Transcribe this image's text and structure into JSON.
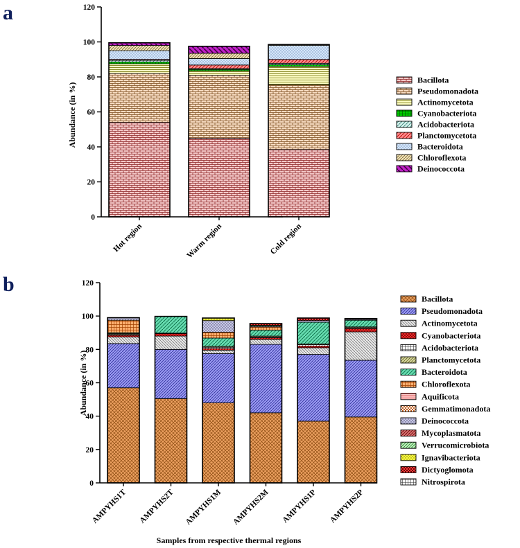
{
  "colors": {
    "panel_letter": "#0f1f5c"
  },
  "chart_data": [
    {
      "panel": "a",
      "type": "bar",
      "stacked": true,
      "ylabel": "Abundance (in %)",
      "xlabel": "",
      "ylim": [
        0,
        120
      ],
      "yticks": [
        "0",
        "20",
        "40",
        "60",
        "80",
        "100",
        "120"
      ],
      "categories": [
        "Hot region",
        "Warm region",
        "Cold region"
      ],
      "series": [
        {
          "name": "Bacillota",
          "values": [
            54,
            45,
            38.5
          ],
          "color": "#f4c9c9",
          "pattern": "brick-red"
        },
        {
          "name": "Pseudomonadota",
          "values": [
            28,
            36,
            37
          ],
          "color": "#f7dcc2",
          "pattern": "brick-orange"
        },
        {
          "name": "Actinomycetota",
          "values": [
            5.5,
            2.5,
            10.5
          ],
          "color": "#ffffc6",
          "pattern": "hlines-yellow"
        },
        {
          "name": "Cyanobacteriota",
          "values": [
            1,
            0.8,
            1
          ],
          "color": "#00c000",
          "pattern": "green-grid"
        },
        {
          "name": "Acidobacteriota",
          "values": [
            1,
            0.5,
            0.8
          ],
          "color": "#d5f1ec",
          "pattern": "diag-teal"
        },
        {
          "name": "Planctomycetota",
          "values": [
            0.5,
            2,
            2.2
          ],
          "color": "#ff6b6b",
          "pattern": "diag-red"
        },
        {
          "name": "Bacteroidota",
          "values": [
            5,
            3.7,
            8
          ],
          "color": "#d4e6fa",
          "pattern": "dots-blue"
        },
        {
          "name": "Chloroflexota",
          "values": [
            3,
            3,
            0.5
          ],
          "color": "#f0e2b8",
          "pattern": "diag-tan"
        },
        {
          "name": "Deinococcota",
          "values": [
            1.5,
            4,
            0
          ],
          "color": "#c020c8",
          "pattern": "diag-magenta"
        }
      ]
    },
    {
      "panel": "b",
      "type": "bar",
      "stacked": true,
      "ylabel": "Abundance (in %)",
      "xlabel": "Samples from respective thermal regions",
      "ylim": [
        0,
        120
      ],
      "yticks": [
        "0",
        "20",
        "40",
        "60",
        "80",
        "100",
        "120"
      ],
      "categories": [
        "AMPYHS1T",
        "AMPYHS2T",
        "AMPYHS1M",
        "AMPYHS2M",
        "AMPYHS1P",
        "AMPYHS2P"
      ],
      "series": [
        {
          "name": "Bacillota",
          "values": [
            57,
            50.5,
            48,
            42,
            37,
            39.5
          ],
          "color": "#e89850",
          "pattern": "cross-orange"
        },
        {
          "name": "Pseudomonadota",
          "values": [
            26.5,
            29.5,
            29.5,
            41,
            40,
            34
          ],
          "color": "#8c8cf0",
          "pattern": "diag-blue"
        },
        {
          "name": "Actinomycetota",
          "values": [
            4,
            8,
            2,
            3,
            4,
            17
          ],
          "color": "#e6e6e6",
          "pattern": "diag-grey"
        },
        {
          "name": "Cyanobacteriota",
          "values": [
            1,
            1.5,
            1,
            1,
            1,
            2
          ],
          "color": "#ff2a2a",
          "pattern": "cross-red"
        },
        {
          "name": "Acidobacteriota",
          "values": [
            0.5,
            0,
            0.8,
            0.5,
            0.8,
            0.5
          ],
          "color": "#ffffff",
          "pattern": "grid"
        },
        {
          "name": "Planctomycetota",
          "values": [
            0.5,
            0.3,
            0.5,
            0.5,
            0.5,
            0.5
          ],
          "color": "#d8d8a0",
          "pattern": "diag-olive"
        },
        {
          "name": "Bacteroidota",
          "values": [
            0.5,
            10,
            5,
            3.5,
            13,
            4
          ],
          "color": "#5fd8a8",
          "pattern": "diag-green"
        },
        {
          "name": "Chloroflexota",
          "values": [
            7.5,
            0,
            3.5,
            2,
            0,
            0
          ],
          "color": "#ffb070",
          "pattern": "grid-orange"
        },
        {
          "name": "Aquificota",
          "values": [
            0,
            0,
            0,
            0,
            0,
            0
          ],
          "color": "#ff7070",
          "pattern": "hlines-red"
        },
        {
          "name": "Gemmatimonadota",
          "values": [
            0,
            0,
            0,
            0,
            0,
            0
          ],
          "color": "#f0a060",
          "pattern": "checker"
        },
        {
          "name": "Deinococcota",
          "values": [
            1.5,
            0,
            7,
            0.5,
            1,
            0.5
          ],
          "color": "#c8c8e8",
          "pattern": "dots-grey"
        },
        {
          "name": "Mycoplasmatota",
          "values": [
            0,
            0,
            0,
            0,
            0,
            0
          ],
          "color": "#d06060",
          "pattern": "diag-darkred"
        },
        {
          "name": "Verrucomicrobiota",
          "values": [
            0,
            0,
            0,
            0,
            0,
            0
          ],
          "color": "#b8f0b8",
          "pattern": "diag-lightgreen"
        },
        {
          "name": "Ignavibacteriota",
          "values": [
            0,
            0,
            1.5,
            0.5,
            0,
            0
          ],
          "color": "#ffff40",
          "pattern": "dots-yellow"
        },
        {
          "name": "Dictyoglomota",
          "values": [
            0,
            0,
            0,
            1,
            1.5,
            0.5
          ],
          "color": "#ff2020",
          "pattern": "checker-red"
        },
        {
          "name": "Nitrospirota",
          "values": [
            0,
            0,
            0,
            0,
            0,
            0
          ],
          "color": "#ffffff",
          "pattern": "grid"
        }
      ]
    }
  ]
}
